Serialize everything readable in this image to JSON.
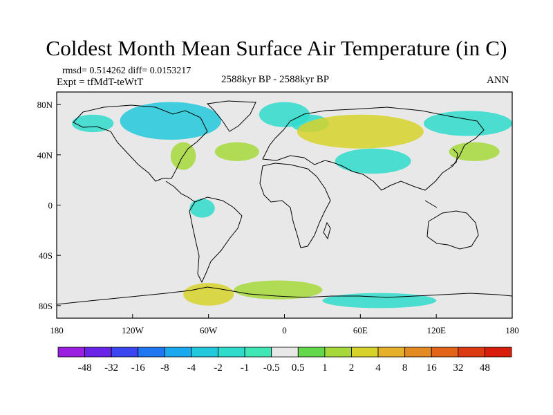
{
  "title": "Coldest Month Mean Surface Air Temperature (in C)",
  "stats_line": "rmsd= 0.514262 diff= 0.0153217",
  "experiment": "Expt = tfMdT-teWtT",
  "period": "2588kyr BP - 2588kyr BP",
  "season": "ANN",
  "axes": {
    "lat_labels": [
      "80N",
      "40N",
      "0",
      "40S",
      "80S"
    ],
    "lon_labels": [
      "180",
      "120W",
      "60W",
      "0",
      "60E",
      "120E",
      "180"
    ]
  },
  "colorbar": {
    "labels": [
      "-48",
      "-32",
      "-16",
      "-8",
      "-4",
      "-2",
      "-1",
      "-0.5",
      "0.5",
      "1",
      "2",
      "4",
      "8",
      "16",
      "32",
      "48"
    ],
    "colors": [
      "#9a1fe0",
      "#6a24e8",
      "#3b46f0",
      "#1f78f2",
      "#1aa8ee",
      "#22c8dc",
      "#2fdccb",
      "#3fe6b6",
      "#e8e8e8",
      "#63d84a",
      "#a6d83a",
      "#d6d22a",
      "#e6b02a",
      "#e48a22",
      "#e26418",
      "#dc3a10",
      "#d81e0a"
    ]
  },
  "chart_data": {
    "type": "heatmap",
    "title": "Coldest Month Mean Surface Air Temperature (in C)",
    "projection": "cylindrical equidistant",
    "lon_range": [
      -180,
      180
    ],
    "lat_range": [
      -90,
      90
    ],
    "units": "C",
    "rmsd": 0.514262,
    "diff": 0.0153217,
    "levels": [
      -48,
      -32,
      -16,
      -8,
      -4,
      -2,
      -1,
      -0.5,
      0.5,
      1,
      2,
      4,
      8,
      16,
      32,
      48
    ],
    "regions": [
      {
        "name": "arctic-canada",
        "lon": [
          -130,
          -50
        ],
        "lat": [
          52,
          82
        ],
        "level": "-2"
      },
      {
        "name": "alaska",
        "lon": [
          -168,
          -135
        ],
        "lat": [
          58,
          72
        ],
        "level": "-1"
      },
      {
        "name": "greenland-sea",
        "lon": [
          -20,
          20
        ],
        "lat": [
          62,
          82
        ],
        "level": "-1"
      },
      {
        "name": "scandinavia",
        "lon": [
          5,
          35
        ],
        "lat": [
          58,
          72
        ],
        "level": "-1"
      },
      {
        "name": "siberia",
        "lon": [
          10,
          110
        ],
        "lat": [
          45,
          72
        ],
        "level": "2"
      },
      {
        "name": "east-siberia",
        "lon": [
          110,
          180
        ],
        "lat": [
          55,
          75
        ],
        "level": "-1"
      },
      {
        "name": "north-atlantic",
        "lon": [
          -55,
          -20
        ],
        "lat": [
          35,
          50
        ],
        "level": "1"
      },
      {
        "name": "eastern-usa",
        "lon": [
          -90,
          -70
        ],
        "lat": [
          28,
          50
        ],
        "level": "1"
      },
      {
        "name": "central-asia",
        "lon": [
          40,
          100
        ],
        "lat": [
          25,
          45
        ],
        "level": "-1"
      },
      {
        "name": "north-pacific",
        "lon": [
          130,
          170
        ],
        "lat": [
          35,
          50
        ],
        "level": "1"
      },
      {
        "name": "amazon",
        "lon": [
          -75,
          -55
        ],
        "lat": [
          -10,
          5
        ],
        "level": "-1"
      },
      {
        "name": "antarctic-peninsula",
        "lon": [
          -80,
          -40
        ],
        "lat": [
          -80,
          -62
        ],
        "level": "2"
      },
      {
        "name": "southern-ocean-atl",
        "lon": [
          -40,
          30
        ],
        "lat": [
          -75,
          -60
        ],
        "level": "1"
      },
      {
        "name": "southern-ocean-ind",
        "lon": [
          30,
          120
        ],
        "lat": [
          -82,
          -70
        ],
        "level": "-1"
      }
    ]
  }
}
